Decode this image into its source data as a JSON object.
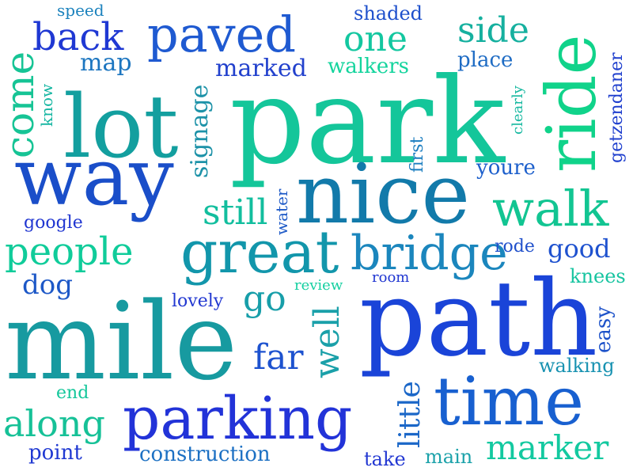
{
  "words": [
    {
      "text": "park",
      "color": "#14c69a"
    },
    {
      "text": "path",
      "color": "#1a44d8"
    },
    {
      "text": "mile",
      "color": "#179aa0"
    },
    {
      "text": "nice",
      "color": "#127aaa"
    },
    {
      "text": "lot",
      "color": "#139f9f"
    },
    {
      "text": "way",
      "color": "#1a4ec9"
    },
    {
      "text": "ride",
      "color": "#10d38a"
    },
    {
      "text": "great",
      "color": "#1296ab"
    },
    {
      "text": "bridge",
      "color": "#1b86bd"
    },
    {
      "text": "time",
      "color": "#1860d0"
    },
    {
      "text": "parking",
      "color": "#2233d8"
    },
    {
      "text": "walk",
      "color": "#12c592"
    },
    {
      "text": "paved",
      "color": "#1f5ad1"
    },
    {
      "text": "come",
      "color": "#16c495"
    },
    {
      "text": "people",
      "color": "#10cc9a"
    },
    {
      "text": "back",
      "color": "#1f38d3"
    },
    {
      "text": "along",
      "color": "#16c197"
    },
    {
      "text": "one",
      "color": "#13c7a0"
    },
    {
      "text": "side",
      "color": "#16b09f"
    },
    {
      "text": "still",
      "color": "#12be9e"
    },
    {
      "text": "well",
      "color": "#1aa0a9"
    },
    {
      "text": "far",
      "color": "#1d52cf"
    },
    {
      "text": "go",
      "color": "#179ea9"
    },
    {
      "text": "marker",
      "color": "#13c9a0"
    },
    {
      "text": "little",
      "color": "#1b67c8"
    },
    {
      "text": "construction",
      "color": "#1c70c3"
    },
    {
      "text": "signage",
      "color": "#1d92a8"
    },
    {
      "text": "good",
      "color": "#1f52cf"
    },
    {
      "text": "dog",
      "color": "#1d58c7"
    },
    {
      "text": "marked",
      "color": "#2241cd"
    },
    {
      "text": "map",
      "color": "#1d76c0"
    },
    {
      "text": "easy",
      "color": "#1d52c9"
    },
    {
      "text": "walkers",
      "color": "#14d49d"
    },
    {
      "text": "place",
      "color": "#1f6cc4"
    },
    {
      "text": "shaded",
      "color": "#1e50cc"
    },
    {
      "text": "point",
      "color": "#2039d2"
    },
    {
      "text": "youre",
      "color": "#1e60cc"
    },
    {
      "text": "walking",
      "color": "#1892b1"
    },
    {
      "text": "knees",
      "color": "#16c4a0"
    },
    {
      "text": "getzendaner",
      "color": "#2040ce"
    },
    {
      "text": "first",
      "color": "#1c7ec0"
    },
    {
      "text": "lovely",
      "color": "#2238d1"
    },
    {
      "text": "take",
      "color": "#2237d2"
    },
    {
      "text": "main",
      "color": "#1ca2aa"
    },
    {
      "text": "end",
      "color": "#15c79b"
    },
    {
      "text": "google",
      "color": "#2036d1"
    },
    {
      "text": "speed",
      "color": "#1b82bd"
    },
    {
      "text": "know",
      "color": "#16b6a2"
    },
    {
      "text": "clearly",
      "color": "#16b8a0"
    },
    {
      "text": "water",
      "color": "#1e5ac7"
    },
    {
      "text": "review",
      "color": "#14cfa0"
    },
    {
      "text": "room",
      "color": "#2036d1"
    },
    {
      "text": "rode",
      "color": "#2050cb"
    }
  ]
}
